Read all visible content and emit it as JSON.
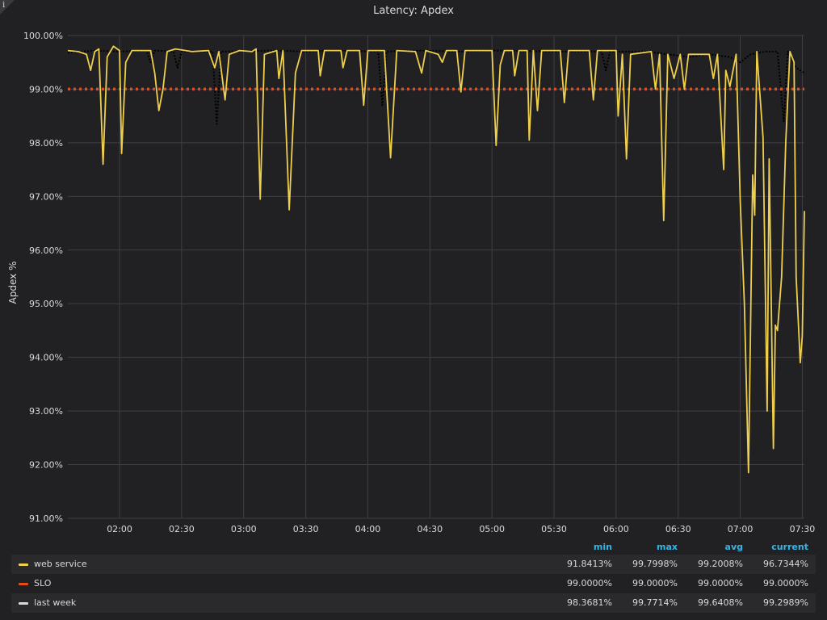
{
  "panel": {
    "title": "Latency: Apdex",
    "info_icon": "info-icon"
  },
  "chart_data": {
    "type": "line",
    "title": "Latency: Apdex",
    "ylabel": "Apdex %",
    "xlabel": "",
    "ylim": [
      91,
      100
    ],
    "yticks": [
      "100.00%",
      "99.00%",
      "98.00%",
      "97.00%",
      "96.00%",
      "95.00%",
      "94.00%",
      "93.00%",
      "92.00%",
      "91.00%"
    ],
    "xlim": [
      "01:35",
      "07:31"
    ],
    "xticks": [
      "02:00",
      "02:30",
      "03:00",
      "03:30",
      "04:00",
      "04:30",
      "05:00",
      "05:30",
      "06:00",
      "06:30",
      "07:00",
      "07:30"
    ],
    "grid": true,
    "legend_position": "bottom",
    "series": [
      {
        "name": "web service",
        "color": "#eecf4d",
        "style": "solid",
        "points": [
          [
            "01:35",
            99.72
          ],
          [
            "01:40",
            99.7
          ],
          [
            "01:44",
            99.65
          ],
          [
            "01:46",
            99.35
          ],
          [
            "01:48",
            99.7
          ],
          [
            "01:50",
            99.75
          ],
          [
            "01:52",
            97.6
          ],
          [
            "01:54",
            99.6
          ],
          [
            "01:57",
            99.8
          ],
          [
            "02:00",
            99.72
          ],
          [
            "02:01",
            97.8
          ],
          [
            "02:03",
            99.5
          ],
          [
            "02:06",
            99.72
          ],
          [
            "02:15",
            99.72
          ],
          [
            "02:17",
            99.3
          ],
          [
            "02:19",
            98.6
          ],
          [
            "02:21",
            99.0
          ],
          [
            "02:23",
            99.7
          ],
          [
            "02:27",
            99.75
          ],
          [
            "02:35",
            99.7
          ],
          [
            "02:43",
            99.72
          ],
          [
            "02:46",
            99.4
          ],
          [
            "02:48",
            99.7
          ],
          [
            "02:51",
            98.8
          ],
          [
            "02:53",
            99.65
          ],
          [
            "02:58",
            99.72
          ],
          [
            "03:04",
            99.7
          ],
          [
            "03:06",
            99.75
          ],
          [
            "03:08",
            96.95
          ],
          [
            "03:10",
            99.65
          ],
          [
            "03:16",
            99.72
          ],
          [
            "03:17",
            99.2
          ],
          [
            "03:19",
            99.72
          ],
          [
            "03:22",
            96.75
          ],
          [
            "03:25",
            99.3
          ],
          [
            "03:28",
            99.72
          ],
          [
            "03:36",
            99.72
          ],
          [
            "03:37",
            99.25
          ],
          [
            "03:39",
            99.72
          ],
          [
            "03:47",
            99.72
          ],
          [
            "03:48",
            99.4
          ],
          [
            "03:50",
            99.72
          ],
          [
            "03:56",
            99.72
          ],
          [
            "03:58",
            98.7
          ],
          [
            "04:00",
            99.72
          ],
          [
            "04:08",
            99.72
          ],
          [
            "04:11",
            97.72
          ],
          [
            "04:14",
            99.72
          ],
          [
            "04:23",
            99.7
          ],
          [
            "04:26",
            99.3
          ],
          [
            "04:28",
            99.72
          ],
          [
            "04:34",
            99.65
          ],
          [
            "04:36",
            99.5
          ],
          [
            "04:38",
            99.72
          ],
          [
            "04:43",
            99.72
          ],
          [
            "04:45",
            98.95
          ],
          [
            "04:47",
            99.72
          ],
          [
            "05:00",
            99.72
          ],
          [
            "05:02",
            97.95
          ],
          [
            "05:04",
            99.45
          ],
          [
            "05:06",
            99.72
          ],
          [
            "05:10",
            99.72
          ],
          [
            "05:11",
            99.25
          ],
          [
            "05:13",
            99.72
          ],
          [
            "05:17",
            99.72
          ],
          [
            "05:18",
            98.05
          ],
          [
            "05:20",
            99.72
          ],
          [
            "05:22",
            98.6
          ],
          [
            "05:24",
            99.72
          ],
          [
            "05:33",
            99.72
          ],
          [
            "05:35",
            98.75
          ],
          [
            "05:37",
            99.72
          ],
          [
            "05:47",
            99.72
          ],
          [
            "05:49",
            98.8
          ],
          [
            "05:51",
            99.72
          ],
          [
            "06:00",
            99.72
          ],
          [
            "06:01",
            98.5
          ],
          [
            "06:03",
            99.65
          ],
          [
            "06:05",
            97.7
          ],
          [
            "06:07",
            99.65
          ],
          [
            "06:17",
            99.7
          ],
          [
            "06:19",
            99.0
          ],
          [
            "06:21",
            99.65
          ],
          [
            "06:23",
            96.55
          ],
          [
            "06:25",
            99.65
          ],
          [
            "06:28",
            99.2
          ],
          [
            "06:31",
            99.65
          ],
          [
            "06:33",
            99.0
          ],
          [
            "06:35",
            99.65
          ],
          [
            "06:45",
            99.65
          ],
          [
            "06:47",
            99.2
          ],
          [
            "06:49",
            99.65
          ],
          [
            "06:52",
            97.5
          ],
          [
            "06:53",
            99.35
          ],
          [
            "06:55",
            99.05
          ],
          [
            "06:58",
            99.65
          ],
          [
            "07:00",
            96.9
          ],
          [
            "07:02",
            95.0
          ],
          [
            "07:04",
            91.85
          ],
          [
            "07:06",
            97.4
          ],
          [
            "07:07",
            96.65
          ],
          [
            "07:08",
            99.7
          ],
          [
            "07:11",
            98.1
          ],
          [
            "07:13",
            93.0
          ],
          [
            "07:14",
            97.7
          ],
          [
            "07:16",
            92.3
          ],
          [
            "07:17",
            94.6
          ],
          [
            "07:18",
            94.5
          ],
          [
            "07:20",
            95.5
          ],
          [
            "07:22",
            98.0
          ],
          [
            "07:24",
            99.7
          ],
          [
            "07:26",
            99.5
          ],
          [
            "07:27",
            95.5
          ],
          [
            "07:29",
            93.9
          ],
          [
            "07:30",
            94.4
          ],
          [
            "07:31",
            96.73
          ]
        ]
      },
      {
        "name": "SLO",
        "color": "#e24d1a",
        "style": "dotted",
        "points": [
          [
            "01:35",
            99.0
          ],
          [
            "07:31",
            99.0
          ]
        ]
      },
      {
        "name": "last week",
        "color": "#000000",
        "style": "dotted",
        "points": [
          [
            "01:35",
            99.68
          ],
          [
            "01:48",
            99.72
          ],
          [
            "02:00",
            99.7
          ],
          [
            "02:13",
            99.72
          ],
          [
            "02:15",
            99.5
          ],
          [
            "02:17",
            99.72
          ],
          [
            "02:26",
            99.7
          ],
          [
            "02:28",
            99.4
          ],
          [
            "02:30",
            99.7
          ],
          [
            "02:45",
            99.7
          ],
          [
            "02:47",
            98.35
          ],
          [
            "02:49",
            99.7
          ],
          [
            "03:15",
            99.72
          ],
          [
            "03:30",
            99.7
          ],
          [
            "03:45",
            99.72
          ],
          [
            "04:05",
            99.7
          ],
          [
            "04:07",
            98.7
          ],
          [
            "04:09",
            99.7
          ],
          [
            "04:25",
            99.72
          ],
          [
            "04:45",
            99.7
          ],
          [
            "05:00",
            99.72
          ],
          [
            "05:30",
            99.7
          ],
          [
            "05:53",
            99.7
          ],
          [
            "05:55",
            99.35
          ],
          [
            "05:57",
            99.7
          ],
          [
            "06:15",
            99.7
          ],
          [
            "06:35",
            99.6
          ],
          [
            "06:45",
            99.65
          ],
          [
            "06:55",
            99.6
          ],
          [
            "07:00",
            99.5
          ],
          [
            "07:05",
            99.65
          ],
          [
            "07:12",
            99.7
          ],
          [
            "07:18",
            99.7
          ],
          [
            "07:21",
            98.4
          ],
          [
            "07:23",
            99.7
          ],
          [
            "07:27",
            99.4
          ],
          [
            "07:31",
            99.3
          ]
        ]
      }
    ]
  },
  "legend": {
    "headers": {
      "min": "min",
      "max": "max",
      "avg": "avg",
      "current": "current"
    },
    "rows": [
      {
        "name": "web service",
        "color": "#eecf4d",
        "min": "91.8413%",
        "max": "99.7998%",
        "avg": "99.2008%",
        "current": "96.7344%"
      },
      {
        "name": "SLO",
        "color": "#e24d1a",
        "min": "99.0000%",
        "max": "99.0000%",
        "avg": "99.0000%",
        "current": "99.0000%"
      },
      {
        "name": "last week",
        "color": "#d8d9da",
        "min": "98.3681%",
        "max": "99.7714%",
        "avg": "99.6408%",
        "current": "99.2989%"
      }
    ]
  }
}
